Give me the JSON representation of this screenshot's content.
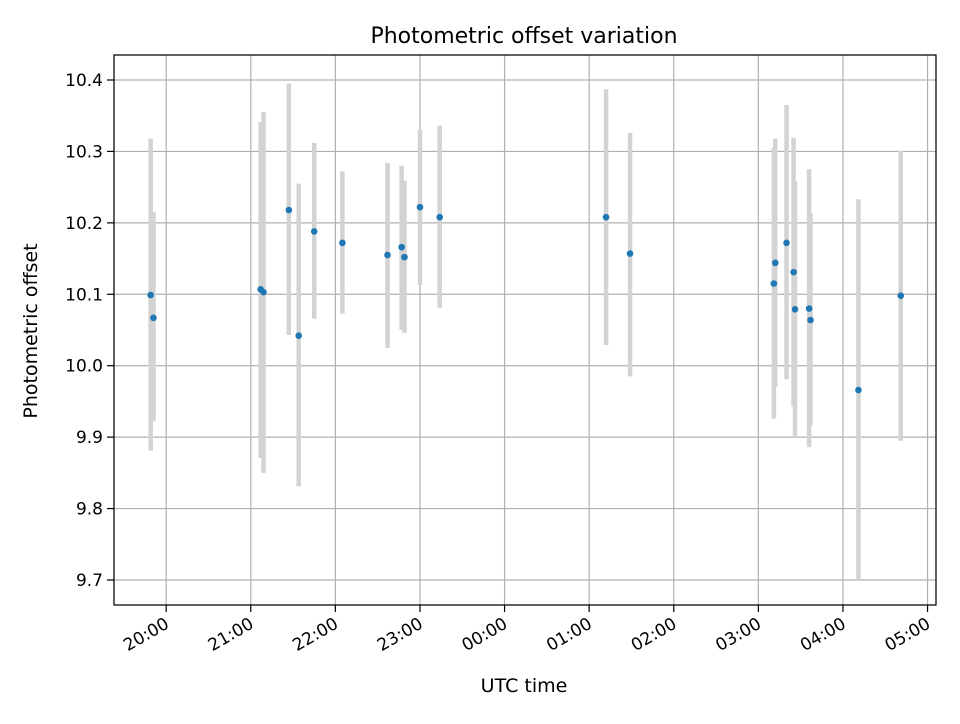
{
  "chart_data": {
    "type": "scatter",
    "title": "Photometric offset variation",
    "xlabel": "UTC time",
    "ylabel": "Photometric offset",
    "grid": true,
    "x_ticks": [
      "20:00",
      "21:00",
      "22:00",
      "23:00",
      "00:00",
      "01:00",
      "02:00",
      "03:00",
      "04:00",
      "05:00"
    ],
    "xlim": [
      "19:23",
      "05:06"
    ],
    "ylim": [
      9.665,
      10.435
    ],
    "y_ticks": [
      9.7,
      9.8,
      9.9,
      10.0,
      10.1,
      10.2,
      10.3,
      10.4
    ],
    "y_tick_labels": [
      "9.7",
      "9.8",
      "9.9",
      "10.0",
      "10.1",
      "10.2",
      "10.3",
      "10.4"
    ],
    "colors": {
      "points": "#1f77b4",
      "error_bars": "#d3d3d3",
      "grid": "#b0b0b0"
    },
    "series": [
      {
        "points": [
          {
            "x": "19:49",
            "y": 10.099,
            "ylo": 9.881,
            "yhi": 10.318
          },
          {
            "x": "19:51",
            "y": 10.067,
            "ylo": 9.922,
            "yhi": 10.215
          },
          {
            "x": "21:07",
            "y": 10.107,
            "ylo": 9.871,
            "yhi": 10.341
          },
          {
            "x": "21:09",
            "y": 10.103,
            "ylo": 9.85,
            "yhi": 10.355
          },
          {
            "x": "21:27",
            "y": 10.218,
            "ylo": 10.043,
            "yhi": 10.395
          },
          {
            "x": "21:34",
            "y": 10.042,
            "ylo": 9.831,
            "yhi": 10.255
          },
          {
            "x": "21:45",
            "y": 10.188,
            "ylo": 10.066,
            "yhi": 10.312
          },
          {
            "x": "22:05",
            "y": 10.172,
            "ylo": 10.073,
            "yhi": 10.272
          },
          {
            "x": "22:37",
            "y": 10.155,
            "ylo": 10.025,
            "yhi": 10.284
          },
          {
            "x": "22:47",
            "y": 10.166,
            "ylo": 10.05,
            "yhi": 10.28
          },
          {
            "x": "22:49",
            "y": 10.152,
            "ylo": 10.046,
            "yhi": 10.259
          },
          {
            "x": "23:00",
            "y": 10.222,
            "ylo": 10.113,
            "yhi": 10.33
          },
          {
            "x": "23:14",
            "y": 10.208,
            "ylo": 10.081,
            "yhi": 10.336
          },
          {
            "x": "01:12",
            "y": 10.208,
            "ylo": 10.029,
            "yhi": 10.387
          },
          {
            "x": "01:29",
            "y": 10.157,
            "ylo": 9.985,
            "yhi": 10.326
          },
          {
            "x": "03:11",
            "y": 10.115,
            "ylo": 9.926,
            "yhi": 10.305
          },
          {
            "x": "03:12",
            "y": 10.144,
            "ylo": 9.97,
            "yhi": 10.318
          },
          {
            "x": "03:20",
            "y": 10.172,
            "ylo": 9.981,
            "yhi": 10.365
          },
          {
            "x": "03:25",
            "y": 10.131,
            "ylo": 9.943,
            "yhi": 10.319
          },
          {
            "x": "03:26",
            "y": 10.079,
            "ylo": 9.9,
            "yhi": 10.258
          },
          {
            "x": "03:36",
            "y": 10.08,
            "ylo": 9.886,
            "yhi": 10.275
          },
          {
            "x": "03:37",
            "y": 10.064,
            "ylo": 9.916,
            "yhi": 10.213
          },
          {
            "x": "04:11",
            "y": 9.966,
            "ylo": 9.7,
            "yhi": 10.233
          },
          {
            "x": "04:41",
            "y": 10.098,
            "ylo": 9.895,
            "yhi": 10.301
          }
        ]
      }
    ]
  }
}
